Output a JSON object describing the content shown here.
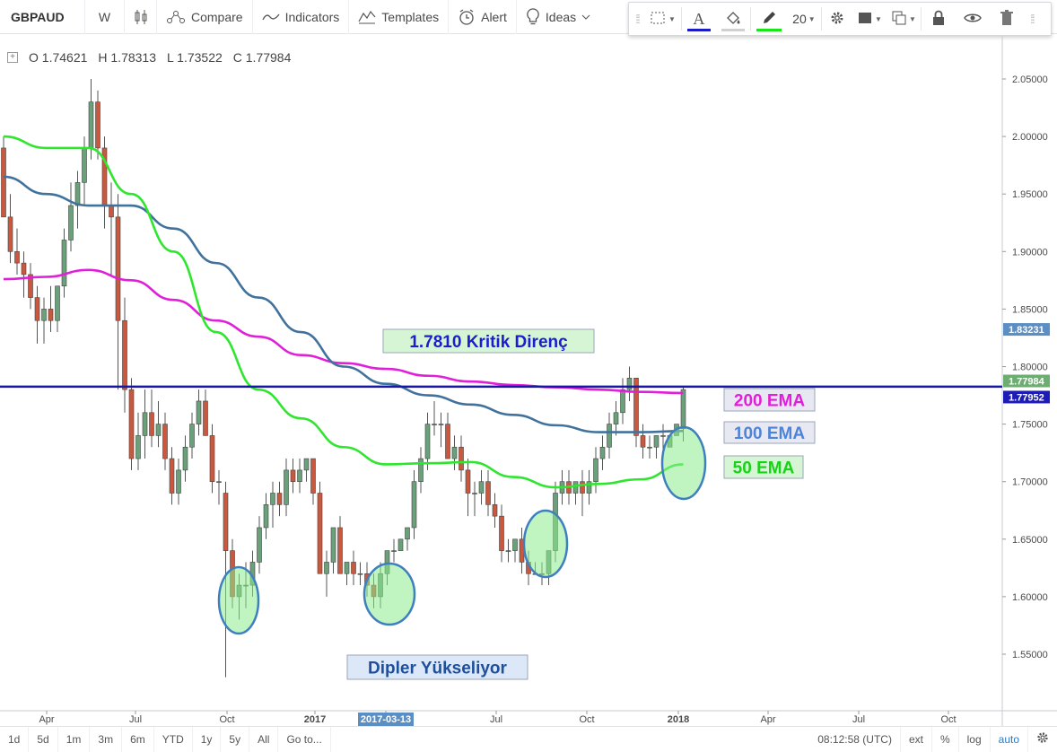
{
  "toolbar": {
    "symbol": "GBPAUD",
    "interval": "W",
    "compare_label": "Compare",
    "indicators_label": "Indicators",
    "templates_label": "Templates",
    "alert_label": "Alert",
    "ideas_label": "Ideas"
  },
  "draw_toolbar": {
    "font_size": "20",
    "text_color": "#1a19c6",
    "fill_color": "#d0d0d0",
    "line_color": "#19e619"
  },
  "legend": {
    "open": "O 1.74621",
    "high": "H 1.78313",
    "low": "L 1.73522",
    "close": "C 1.77984"
  },
  "bottom_bar": {
    "ranges": [
      "1d",
      "5d",
      "1m",
      "3m",
      "6m",
      "YTD",
      "1y",
      "5y",
      "All"
    ],
    "goto_label": "Go to...",
    "time": "08:12:58 (UTC)",
    "ext": "ext",
    "percent": "%",
    "log": "log",
    "auto": "auto"
  },
  "chart_data": {
    "type": "candlestick",
    "symbol": "GBPAUD",
    "interval": "weekly",
    "price_axis": {
      "range": [
        1.515,
        2.07
      ],
      "ticks": [
        "2.05000",
        "2.00000",
        "1.95000",
        "1.90000",
        "1.85000",
        "1.80000",
        "1.75000",
        "1.70000",
        "1.65000",
        "1.60000",
        "1.55000"
      ],
      "markers": [
        {
          "label": "1.83231",
          "value": 1.83231,
          "color": "#5b8fc4"
        },
        {
          "label": "1.77984",
          "value": 1.77984,
          "color": "#6dad71"
        },
        {
          "label": "1.77952",
          "value": 1.77952,
          "color": "#1d1db5"
        }
      ]
    },
    "time_axis": {
      "labels": [
        "Apr",
        "Jul",
        "Oct",
        "2017",
        "2017-03-13",
        "Jul",
        "Oct",
        "2018",
        "Apr",
        "Jul",
        "Oct"
      ],
      "highlight": "2017-03-13"
    },
    "candles_ohlc": [
      [
        1.99,
        2.0,
        1.97,
        1.93
      ],
      [
        1.93,
        1.95,
        1.89,
        1.9
      ],
      [
        1.9,
        1.92,
        1.88,
        1.89
      ],
      [
        1.89,
        1.9,
        1.86,
        1.88
      ],
      [
        1.88,
        1.89,
        1.85,
        1.86
      ],
      [
        1.86,
        1.87,
        1.82,
        1.84
      ],
      [
        1.84,
        1.86,
        1.82,
        1.85
      ],
      [
        1.85,
        1.87,
        1.83,
        1.84
      ],
      [
        1.84,
        1.87,
        1.83,
        1.87
      ],
      [
        1.87,
        1.92,
        1.86,
        1.91
      ],
      [
        1.91,
        1.96,
        1.9,
        1.94
      ],
      [
        1.94,
        1.97,
        1.92,
        1.96
      ],
      [
        1.96,
        2.0,
        1.94,
        1.99
      ],
      [
        1.99,
        2.05,
        1.98,
        2.03
      ],
      [
        2.03,
        2.04,
        1.98,
        1.99
      ],
      [
        1.99,
        2.0,
        1.92,
        1.94
      ],
      [
        1.94,
        1.96,
        1.88,
        1.93
      ],
      [
        1.93,
        1.95,
        1.78,
        1.84
      ],
      [
        1.84,
        1.86,
        1.76,
        1.78
      ],
      [
        1.78,
        1.79,
        1.71,
        1.72
      ],
      [
        1.72,
        1.76,
        1.71,
        1.74
      ],
      [
        1.74,
        1.78,
        1.72,
        1.76
      ],
      [
        1.76,
        1.78,
        1.73,
        1.74
      ],
      [
        1.74,
        1.77,
        1.73,
        1.75
      ],
      [
        1.75,
        1.76,
        1.71,
        1.72
      ],
      [
        1.72,
        1.73,
        1.68,
        1.69
      ],
      [
        1.69,
        1.72,
        1.68,
        1.71
      ],
      [
        1.71,
        1.74,
        1.7,
        1.73
      ],
      [
        1.73,
        1.76,
        1.72,
        1.75
      ],
      [
        1.75,
        1.78,
        1.74,
        1.77
      ],
      [
        1.77,
        1.78,
        1.74,
        1.74
      ],
      [
        1.74,
        1.75,
        1.69,
        1.7
      ],
      [
        1.7,
        1.71,
        1.68,
        1.7
      ],
      [
        1.69,
        1.7,
        1.53,
        1.64
      ],
      [
        1.64,
        1.65,
        1.59,
        1.6
      ],
      [
        1.6,
        1.62,
        1.58,
        1.61
      ],
      [
        1.61,
        1.63,
        1.59,
        1.61
      ],
      [
        1.61,
        1.64,
        1.6,
        1.63
      ],
      [
        1.63,
        1.67,
        1.62,
        1.66
      ],
      [
        1.66,
        1.69,
        1.65,
        1.68
      ],
      [
        1.68,
        1.7,
        1.66,
        1.69
      ],
      [
        1.69,
        1.7,
        1.67,
        1.68
      ],
      [
        1.68,
        1.72,
        1.67,
        1.71
      ],
      [
        1.71,
        1.72,
        1.69,
        1.7
      ],
      [
        1.7,
        1.72,
        1.69,
        1.71
      ],
      [
        1.71,
        1.72,
        1.7,
        1.72
      ],
      [
        1.72,
        1.72,
        1.68,
        1.69
      ],
      [
        1.69,
        1.7,
        1.62,
        1.62
      ],
      [
        1.62,
        1.64,
        1.6,
        1.63
      ],
      [
        1.63,
        1.66,
        1.62,
        1.66
      ],
      [
        1.66,
        1.67,
        1.62,
        1.62
      ],
      [
        1.62,
        1.63,
        1.61,
        1.63
      ],
      [
        1.63,
        1.64,
        1.61,
        1.62
      ],
      [
        1.62,
        1.63,
        1.61,
        1.62
      ],
      [
        1.62,
        1.63,
        1.6,
        1.61
      ],
      [
        1.61,
        1.62,
        1.59,
        1.6
      ],
      [
        1.6,
        1.63,
        1.59,
        1.62
      ],
      [
        1.62,
        1.64,
        1.61,
        1.64
      ],
      [
        1.64,
        1.65,
        1.63,
        1.64
      ],
      [
        1.64,
        1.65,
        1.64,
        1.65
      ],
      [
        1.65,
        1.66,
        1.64,
        1.66
      ],
      [
        1.66,
        1.71,
        1.65,
        1.7
      ],
      [
        1.7,
        1.73,
        1.69,
        1.72
      ],
      [
        1.72,
        1.76,
        1.71,
        1.75
      ],
      [
        1.75,
        1.77,
        1.74,
        1.75
      ],
      [
        1.75,
        1.76,
        1.73,
        1.75
      ],
      [
        1.75,
        1.76,
        1.72,
        1.72
      ],
      [
        1.72,
        1.74,
        1.71,
        1.73
      ],
      [
        1.73,
        1.74,
        1.7,
        1.71
      ],
      [
        1.71,
        1.72,
        1.67,
        1.69
      ],
      [
        1.69,
        1.7,
        1.67,
        1.69
      ],
      [
        1.69,
        1.71,
        1.68,
        1.7
      ],
      [
        1.7,
        1.71,
        1.67,
        1.68
      ],
      [
        1.68,
        1.69,
        1.66,
        1.67
      ],
      [
        1.67,
        1.68,
        1.63,
        1.64
      ],
      [
        1.64,
        1.65,
        1.63,
        1.64
      ],
      [
        1.64,
        1.65,
        1.63,
        1.65
      ],
      [
        1.65,
        1.66,
        1.62,
        1.63
      ],
      [
        1.63,
        1.64,
        1.61,
        1.62
      ],
      [
        1.62,
        1.63,
        1.62,
        1.62
      ],
      [
        1.62,
        1.63,
        1.61,
        1.62
      ],
      [
        1.62,
        1.64,
        1.61,
        1.64
      ],
      [
        1.64,
        1.7,
        1.63,
        1.69
      ],
      [
        1.69,
        1.71,
        1.68,
        1.7
      ],
      [
        1.7,
        1.71,
        1.68,
        1.69
      ],
      [
        1.69,
        1.7,
        1.68,
        1.7
      ],
      [
        1.7,
        1.71,
        1.67,
        1.69
      ],
      [
        1.69,
        1.71,
        1.68,
        1.7
      ],
      [
        1.7,
        1.73,
        1.69,
        1.72
      ],
      [
        1.72,
        1.74,
        1.71,
        1.73
      ],
      [
        1.73,
        1.76,
        1.72,
        1.75
      ],
      [
        1.75,
        1.77,
        1.74,
        1.76
      ],
      [
        1.76,
        1.79,
        1.75,
        1.78
      ],
      [
        1.78,
        1.8,
        1.77,
        1.79
      ],
      [
        1.79,
        1.79,
        1.73,
        1.74
      ],
      [
        1.74,
        1.75,
        1.72,
        1.73
      ],
      [
        1.73,
        1.74,
        1.72,
        1.73
      ],
      [
        1.73,
        1.74,
        1.72,
        1.74
      ],
      [
        1.74,
        1.75,
        1.72,
        1.74
      ],
      [
        1.73,
        1.74,
        1.73,
        1.74
      ],
      [
        1.74,
        1.75,
        1.74,
        1.75
      ],
      [
        1.746,
        1.783,
        1.735,
        1.78
      ]
    ],
    "series": [
      {
        "name": "200 EMA",
        "color": "#e020d8",
        "values": [
          1.876,
          1.878,
          1.884,
          1.875,
          1.858,
          1.84,
          1.826,
          1.81,
          1.803,
          1.798,
          1.792,
          1.787,
          1.784,
          1.782,
          1.78,
          1.778,
          1.777
        ]
      },
      {
        "name": "100 EMA",
        "color": "#41729c",
        "values": [
          1.965,
          1.95,
          1.94,
          1.94,
          1.92,
          1.89,
          1.86,
          1.83,
          1.8,
          1.785,
          1.775,
          1.767,
          1.758,
          1.749,
          1.743,
          1.743,
          1.744
        ]
      },
      {
        "name": "50 EMA",
        "color": "#2ee62e",
        "values": [
          2.0,
          1.99,
          1.99,
          1.95,
          1.9,
          1.83,
          1.78,
          1.755,
          1.73,
          1.715,
          1.716,
          1.717,
          1.704,
          1.695,
          1.698,
          1.702,
          1.715
        ]
      }
    ],
    "resistance": {
      "value": 1.781,
      "color": "#1818a8"
    },
    "annotations": [
      {
        "text": "1.7810 Kritik Direnç",
        "bg": "#d5f5d5",
        "color": "#1c1cd0"
      },
      {
        "text": "200 EMA",
        "bg": "#e8e8f3",
        "color": "#e020d8"
      },
      {
        "text": "100 EMA",
        "bg": "#e8e8f3",
        "color": "#4e84d8"
      },
      {
        "text": "50 EMA",
        "bg": "#d5f5d5",
        "color": "#19d119"
      },
      {
        "text": "Dipler Yükseliyor",
        "bg": "#dce8f7",
        "color": "#1d4f9c"
      }
    ],
    "up_color": "#6aa07a",
    "down_color": "#c8593f"
  }
}
